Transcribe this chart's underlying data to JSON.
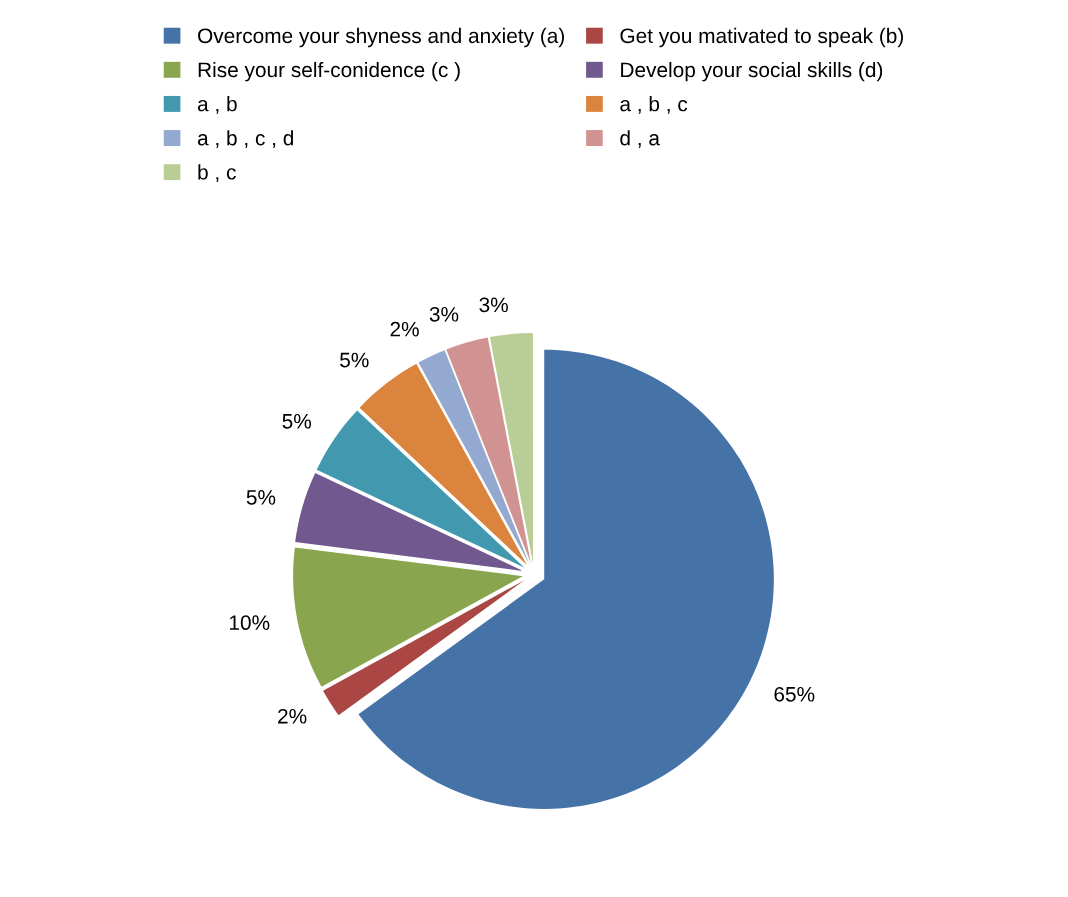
{
  "chart_data": {
    "type": "pie",
    "categories": [
      "Overcome your shyness and anxiety (a)",
      "Get you mativated to speak (b)",
      "Rise your self-conidence (c )",
      "Develop your social skills (d)",
      "a , b",
      "a , b , c",
      "a , b , c , d",
      "d , a",
      "b , c"
    ],
    "values": [
      65,
      2,
      10,
      5,
      5,
      5,
      2,
      3,
      3
    ],
    "value_labels": [
      "65%",
      "2%",
      "10%",
      "5%",
      "5%",
      "5%",
      "2%",
      "3%",
      "3%"
    ],
    "colors": [
      "#4572a7",
      "#aa4643",
      "#89a54e",
      "#71588f",
      "#4198af",
      "#db843d",
      "#93a9cf",
      "#d19392",
      "#b9cd96"
    ],
    "legend": "top"
  }
}
